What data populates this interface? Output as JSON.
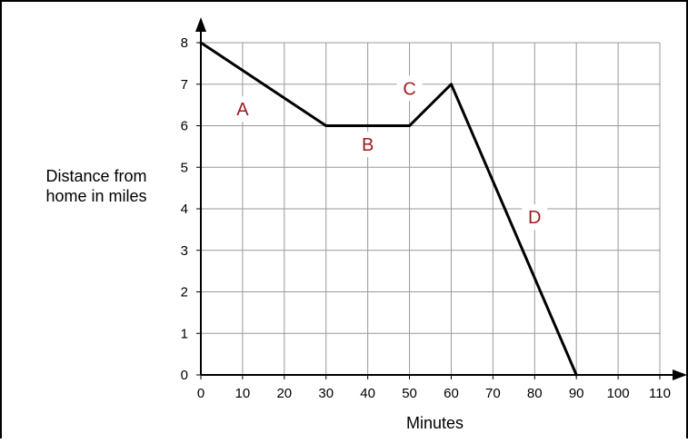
{
  "chart_data": {
    "type": "line",
    "xlabel": "Minutes",
    "ylabel_lines": [
      "Distance from",
      "home in miles"
    ],
    "xlim": [
      0,
      110
    ],
    "ylim": [
      0,
      8
    ],
    "x_ticks": [
      0,
      10,
      20,
      30,
      40,
      50,
      60,
      70,
      80,
      90,
      100,
      110
    ],
    "y_ticks": [
      0,
      1,
      2,
      3,
      4,
      5,
      6,
      7,
      8
    ],
    "grid": true,
    "series": [
      {
        "x": [
          0,
          30,
          50,
          60,
          90
        ],
        "y": [
          8,
          6,
          6,
          7,
          0
        ]
      }
    ],
    "annotations": [
      {
        "text": "A",
        "x": 10,
        "y": 6.4
      },
      {
        "text": "B",
        "x": 40,
        "y": 5.55
      },
      {
        "text": "C",
        "x": 50,
        "y": 6.9
      },
      {
        "text": "D",
        "x": 80,
        "y": 3.8
      }
    ],
    "colors": {
      "line": "#000000",
      "grid": "#999999",
      "annotation_text": "#9b1c1c"
    }
  }
}
